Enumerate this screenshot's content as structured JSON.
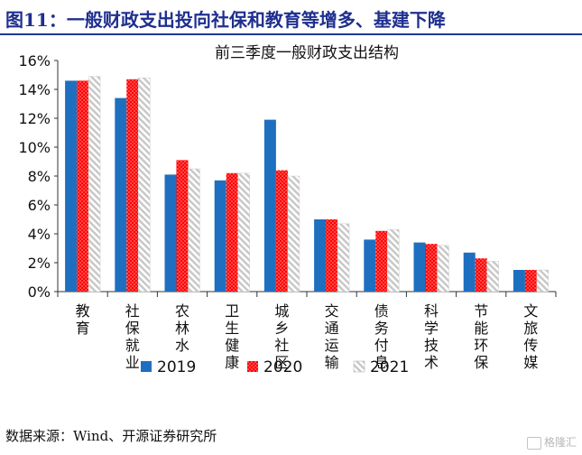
{
  "figure": {
    "title": "图11：一般财政支出投向社保和教育等增多、基建下降",
    "source": "数据来源：Wind、开源证券研究所"
  },
  "watermark": {
    "label": "格隆汇"
  },
  "colors": {
    "s2019": "#1f6fc0",
    "s2020": "#ff0000",
    "s2021": "#bfbfbf",
    "title_blue": "#1f2f8f"
  },
  "chart_data": {
    "type": "bar",
    "title": "前三季度一般财政支出结构",
    "xlabel": "",
    "ylabel": "",
    "categories": [
      "教育",
      "社保就业",
      "农林水",
      "卫生健康",
      "城乡社区",
      "交通运输",
      "债务付息",
      "科学技术",
      "节能环保",
      "文旅传媒"
    ],
    "series": [
      {
        "name": "2019",
        "values": [
          14.6,
          13.4,
          8.1,
          7.7,
          11.9,
          5.0,
          3.6,
          3.4,
          2.7,
          1.5
        ],
        "color": "#1f6fc0",
        "pattern": "solid"
      },
      {
        "name": "2020",
        "values": [
          14.6,
          14.7,
          9.1,
          8.2,
          8.4,
          5.0,
          4.2,
          3.3,
          2.3,
          1.5
        ],
        "color": "#ff0000",
        "pattern": "dots"
      },
      {
        "name": "2021",
        "values": [
          14.9,
          14.8,
          8.5,
          8.2,
          8.0,
          4.7,
          4.3,
          3.2,
          2.1,
          1.5
        ],
        "color": "#bfbfbf",
        "pattern": "hatch"
      }
    ],
    "ylim": [
      0,
      16
    ],
    "yticks": [
      "0%",
      "2%",
      "4%",
      "6%",
      "8%",
      "10%",
      "12%",
      "14%",
      "16%"
    ],
    "legend_position": "bottom",
    "grid": false
  }
}
